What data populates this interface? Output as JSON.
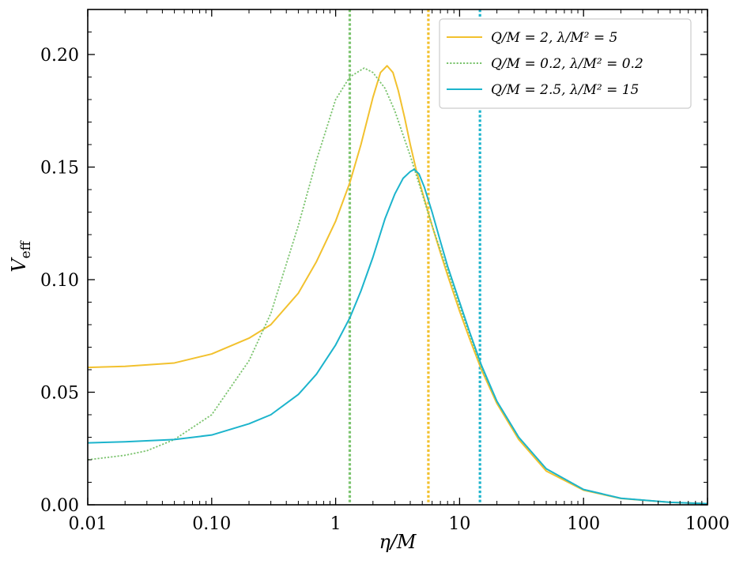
{
  "chart_data": {
    "type": "line",
    "xscale": "log",
    "xlabel": "η/M",
    "ylabel": {
      "main": "V",
      "sub": "eff"
    },
    "xlim": [
      0.01,
      1000
    ],
    "ylim": [
      0,
      0.22
    ],
    "x_ticks": [
      {
        "value": 0.01,
        "label": "0.01"
      },
      {
        "value": 0.1,
        "label": "0.10"
      },
      {
        "value": 1,
        "label": "1"
      },
      {
        "value": 10,
        "label": "10"
      },
      {
        "value": 100,
        "label": "100"
      },
      {
        "value": 1000,
        "label": "1000"
      }
    ],
    "y_ticks": [
      {
        "value": 0,
        "label": "0.00"
      },
      {
        "value": 0.05,
        "label": "0.05"
      },
      {
        "value": 0.1,
        "label": "0.10"
      },
      {
        "value": 0.15,
        "label": "0.15"
      },
      {
        "value": 0.2,
        "label": "0.20"
      }
    ],
    "grid": false,
    "legend_position": "top-right",
    "series": [
      {
        "name": "Q/M = 2, λ/M² = 5",
        "color": "#f2c12e",
        "style": "solid",
        "x": [
          0.01,
          0.02,
          0.05,
          0.1,
          0.2,
          0.3,
          0.5,
          0.7,
          1.0,
          1.3,
          1.6,
          2.0,
          2.3,
          2.6,
          2.9,
          3.2,
          3.6,
          4.0,
          4.5,
          5.0,
          6.0,
          7.0,
          8.0,
          10,
          12,
          15,
          20,
          30,
          50,
          100,
          200,
          500,
          1000
        ],
        "y": [
          0.061,
          0.0615,
          0.063,
          0.067,
          0.074,
          0.08,
          0.094,
          0.108,
          0.126,
          0.143,
          0.16,
          0.181,
          0.192,
          0.195,
          0.192,
          0.184,
          0.172,
          0.16,
          0.148,
          0.139,
          0.124,
          0.112,
          0.102,
          0.086,
          0.074,
          0.06,
          0.045,
          0.029,
          0.015,
          0.0065,
          0.0028,
          0.0011,
          0.0005
        ]
      },
      {
        "name": "Q/M = 0.2, λ/M² = 0.2",
        "color": "#7cc46f",
        "style": "dotted",
        "x": [
          0.01,
          0.02,
          0.03,
          0.05,
          0.1,
          0.2,
          0.3,
          0.5,
          0.7,
          1.0,
          1.3,
          1.7,
          2.0,
          2.5,
          3.0,
          4.0,
          5.0,
          6.0,
          8.0,
          10,
          12,
          15,
          20,
          30,
          50,
          100,
          200,
          500,
          1000
        ],
        "y": [
          0.02,
          0.022,
          0.024,
          0.029,
          0.04,
          0.064,
          0.085,
          0.124,
          0.153,
          0.18,
          0.19,
          0.194,
          0.192,
          0.185,
          0.175,
          0.155,
          0.138,
          0.124,
          0.104,
          0.088,
          0.076,
          0.061,
          0.046,
          0.03,
          0.016,
          0.0068,
          0.0029,
          0.0011,
          0.0005
        ]
      },
      {
        "name": "Q/M = 2.5, λ/M² = 15",
        "color": "#1cb4cc",
        "style": "solid",
        "x": [
          0.01,
          0.02,
          0.05,
          0.1,
          0.2,
          0.3,
          0.5,
          0.7,
          1.0,
          1.3,
          1.6,
          2.0,
          2.5,
          3.0,
          3.5,
          4.0,
          4.3,
          4.7,
          5.2,
          6.0,
          7.0,
          8.0,
          10,
          12,
          15,
          20,
          30,
          50,
          100,
          200,
          500,
          1000
        ],
        "y": [
          0.0275,
          0.028,
          0.029,
          0.031,
          0.036,
          0.04,
          0.049,
          0.058,
          0.071,
          0.083,
          0.095,
          0.11,
          0.127,
          0.138,
          0.145,
          0.148,
          0.149,
          0.147,
          0.141,
          0.13,
          0.117,
          0.106,
          0.09,
          0.077,
          0.062,
          0.046,
          0.03,
          0.016,
          0.0068,
          0.0029,
          0.0011,
          0.0005
        ]
      }
    ],
    "vertical_lines": [
      {
        "x": 1.3,
        "color": "#7cc46f",
        "style": "dotted"
      },
      {
        "x": 5.6,
        "color": "#f2c12e",
        "style": "dotted"
      },
      {
        "x": 14.6,
        "color": "#1cb4cc",
        "style": "dotted"
      }
    ]
  }
}
